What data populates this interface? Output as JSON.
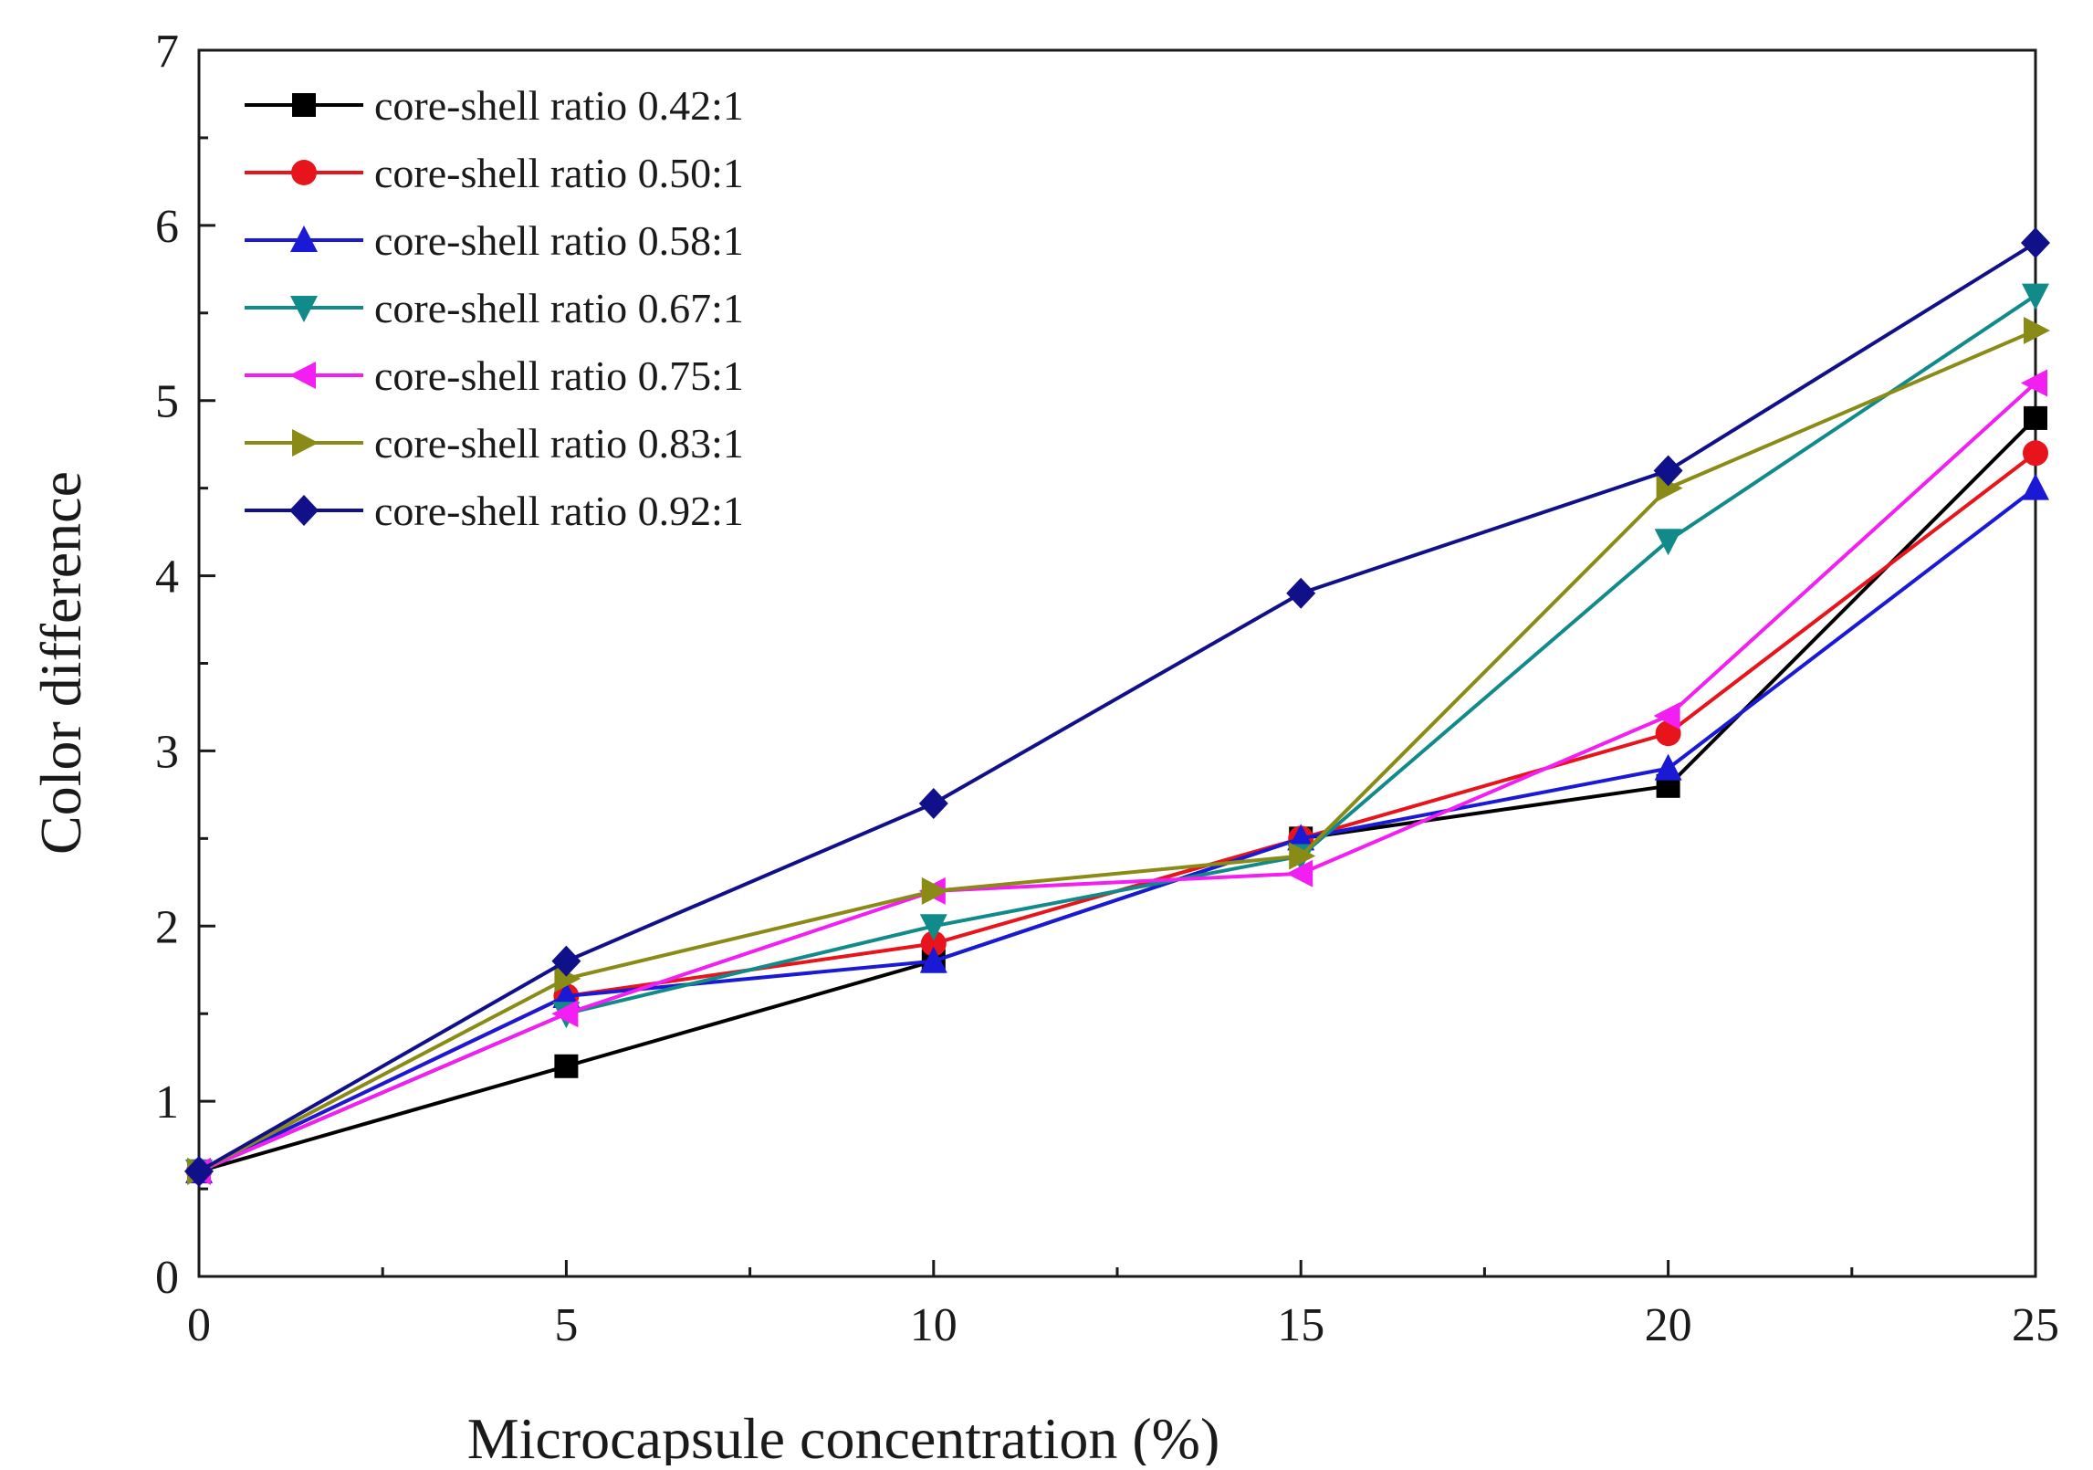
{
  "chart_data": {
    "type": "line",
    "title": "",
    "xlabel": "Microcapsule concentration (%)",
    "ylabel": "Color difference",
    "xlim": [
      0,
      25
    ],
    "ylim": [
      0,
      7
    ],
    "xticks": [
      0,
      5,
      10,
      15,
      20,
      25
    ],
    "yticks": [
      0,
      1,
      2,
      3,
      4,
      5,
      6,
      7
    ],
    "xtick_labels": [
      "0",
      "5",
      "10",
      "15",
      "20",
      "25"
    ],
    "ytick_labels": [
      "0",
      "1",
      "2",
      "3",
      "4",
      "5",
      "6",
      "7"
    ],
    "grid": false,
    "legend_position": "top-left",
    "x": [
      0,
      5,
      10,
      15,
      20,
      25
    ],
    "series": [
      {
        "name": "core-shell ratio 0.42:1",
        "values": [
          0.6,
          1.2,
          1.8,
          2.5,
          2.8,
          4.9
        ],
        "color": "#000000",
        "marker": "square"
      },
      {
        "name": "core-shell ratio 0.50:1",
        "values": [
          0.6,
          1.6,
          1.9,
          2.5,
          3.1,
          4.7
        ],
        "color": "#e8141b",
        "marker": "circle"
      },
      {
        "name": "core-shell ratio 0.58:1",
        "values": [
          0.6,
          1.6,
          1.8,
          2.5,
          2.9,
          4.5
        ],
        "color": "#1a1ad6",
        "marker": "triangle-up"
      },
      {
        "name": "core-shell ratio 0.67:1",
        "values": [
          0.6,
          1.5,
          2.0,
          2.4,
          4.2,
          5.6
        ],
        "color": "#118a8a",
        "marker": "triangle-down"
      },
      {
        "name": "core-shell ratio 0.75:1",
        "values": [
          0.6,
          1.5,
          2.2,
          2.3,
          3.2,
          5.1
        ],
        "color": "#f21ef2",
        "marker": "triangle-left"
      },
      {
        "name": "core-shell ratio 0.83:1",
        "values": [
          0.6,
          1.7,
          2.2,
          2.4,
          4.5,
          5.4
        ],
        "color": "#8a8a16",
        "marker": "triangle-right"
      },
      {
        "name": "core-shell ratio 0.92:1",
        "values": [
          0.6,
          1.8,
          2.7,
          3.9,
          4.6,
          5.9
        ],
        "color": "#10108a",
        "marker": "diamond"
      }
    ]
  }
}
